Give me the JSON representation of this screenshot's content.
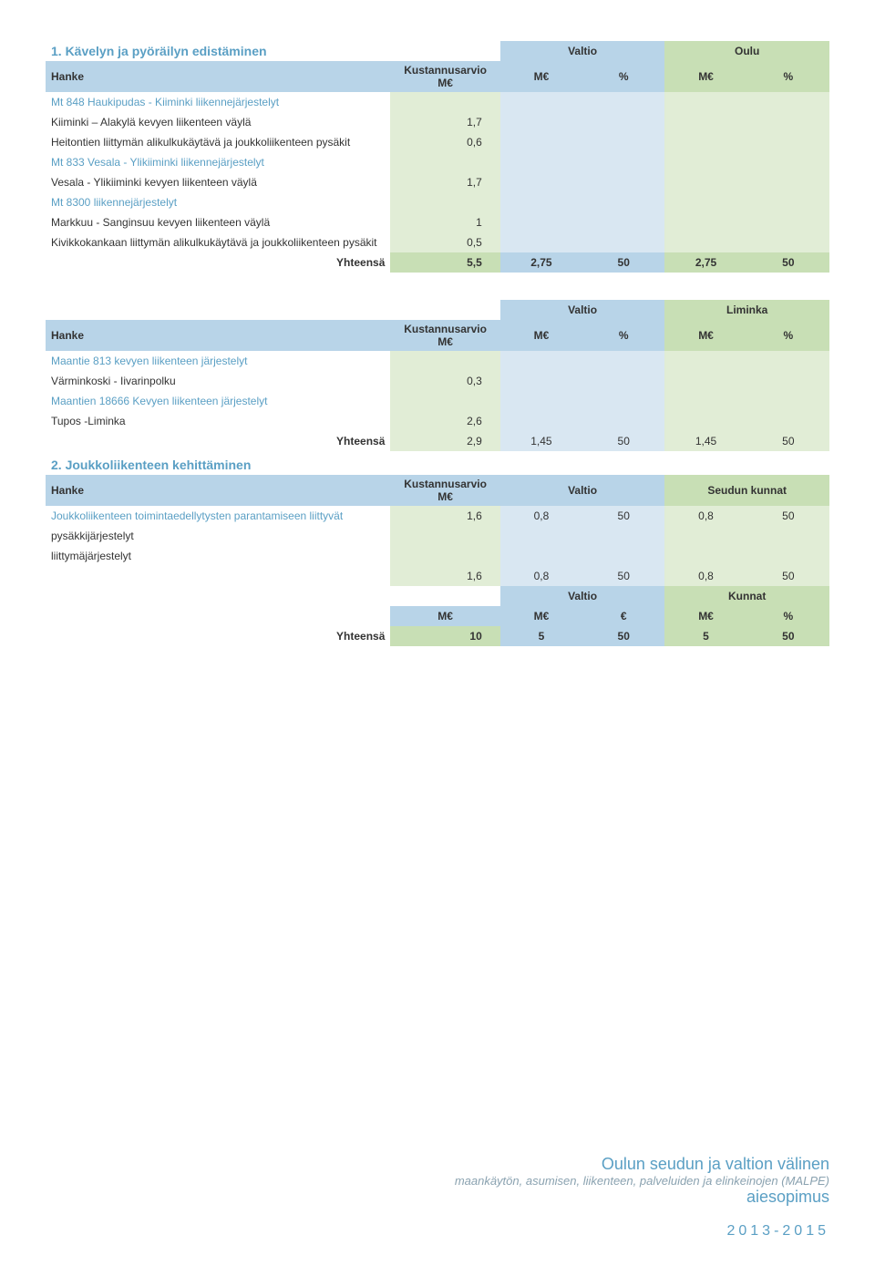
{
  "section1": {
    "title": "1. Kävelyn ja pyöräilyn edistäminen",
    "headers": {
      "hanke": "Hanke",
      "cost": "Kustannusarvio M€",
      "valtio": "Valtio",
      "oulu": "Oulu",
      "m": "M€",
      "pct": "%"
    },
    "rows": [
      {
        "label": "Mt 848 Haukipudas - Kiiminki liikennejärjestelyt",
        "proj": true
      },
      {
        "label": "Kiiminki – Alakylä kevyen liikenteen väylä",
        "cost": "1,7"
      },
      {
        "label": "Heitontien liittymän alikulkukäytävä ja joukkoliikenteen pysäkit",
        "cost": "0,6"
      },
      {
        "label": "Mt 833 Vesala - Ylikiiminki liikennejärjestelyt",
        "proj": true
      },
      {
        "label": "Vesala - Ylikiiminki kevyen liikenteen väylä",
        "cost": "1,7"
      },
      {
        "label": "Mt 8300 liikennejärjestelyt",
        "proj": true
      },
      {
        "label": "Markkuu - Sanginsuu kevyen liikenteen väylä",
        "cost": "1"
      },
      {
        "label": "Kivikkokankaan liittymän alikulkukäytävä ja joukkoliikenteen pysäkit",
        "cost": "0,5"
      }
    ],
    "sum": {
      "label": "Yhteensä",
      "cost": "5,5",
      "v1": "2,75",
      "v2": "50",
      "v3": "2,75",
      "v4": "50"
    }
  },
  "section2": {
    "headers": {
      "hanke": "Hanke",
      "cost": "Kustannusarvio M€",
      "valtio": "Valtio",
      "liminka": "Liminka",
      "m": "M€",
      "pct": "%"
    },
    "rows": [
      {
        "label": "Maantie 813 kevyen liikenteen järjestelyt",
        "proj": true
      },
      {
        "label": "Värminkoski - Iivarinpolku",
        "cost": "0,3"
      },
      {
        "label": "Maantien 18666 Kevyen liikenteen järjestelyt",
        "proj": true
      },
      {
        "label": "Tupos -Liminka",
        "cost": "2,6"
      }
    ],
    "sum": {
      "label": "Yhteensä",
      "cost": "2,9",
      "v1": "1,45",
      "v2": "50",
      "v3": "1,45",
      "v4": "50"
    }
  },
  "section3": {
    "title": "2. Joukkoliikenteen kehittäminen",
    "headers": {
      "hanke": "Hanke",
      "cost": "Kustannusarvio M€",
      "valtio": "Valtio",
      "kunnat": "Seudun kunnat"
    },
    "rows": [
      {
        "label": "Joukkoliikenteen toimintaedellytysten parantamiseen liittyvät",
        "proj": true,
        "cost": "1,6",
        "v1": "0,8",
        "v2": "50",
        "v3": "0,8",
        "v4": "50"
      },
      {
        "label": "pysäkkijärjestelyt"
      },
      {
        "label": "liittymäjärjestelyt"
      }
    ],
    "sub": {
      "cost": "1,6",
      "v1": "0,8",
      "v2": "50",
      "v3": "0,8",
      "v4": "50"
    },
    "hdr2": {
      "valtio": "Valtio",
      "kunnat": "Kunnat",
      "m": "M€",
      "eur": "€",
      "pct": "%"
    },
    "sum": {
      "label": "Yhteensä",
      "cost": "10",
      "v1": "5",
      "v2": "50",
      "v3": "5",
      "v4": "50"
    }
  },
  "footer": {
    "l1": "Oulun seudun ja valtion välinen",
    "l2": "maankäytön, asumisen, liikenteen, palveluiden ja elinkeinojen (MALPE)",
    "l3": "aiesopimus",
    "yr": "2013-2015"
  }
}
